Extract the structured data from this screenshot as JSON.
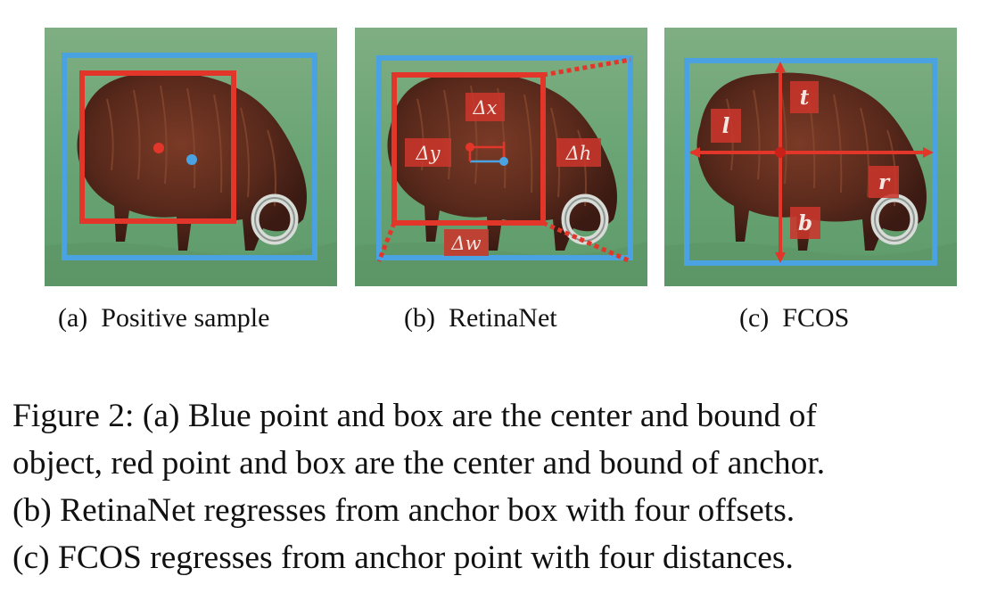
{
  "figure": {
    "panels": [
      {
        "id": "a",
        "tag": "(a)",
        "label": "Positive sample"
      },
      {
        "id": "b",
        "tag": "(b)",
        "label": "RetinaNet",
        "offset_labels": {
          "dx": "Δx",
          "dy": "Δy",
          "dh": "Δh",
          "dw": "Δw"
        }
      },
      {
        "id": "c",
        "tag": "(c)",
        "label": "FCOS",
        "distance_labels": {
          "l": "l",
          "t": "t",
          "r": "r",
          "b": "b"
        }
      }
    ],
    "caption_lines": [
      "Figure 2: (a) Blue point and box are the center and bound of",
      "object, red point and box are the center and bound of anchor.",
      "(b) RetinaNet regresses from anchor box with four offsets.",
      "(c) FCOS regresses from anchor point with four distances."
    ]
  },
  "colors": {
    "object_box": "#4aa3e0",
    "anchor_box": "#e2362a",
    "label_bg": "#c9362b",
    "grass": "#6fa878",
    "animal": "#5a2a1c"
  }
}
